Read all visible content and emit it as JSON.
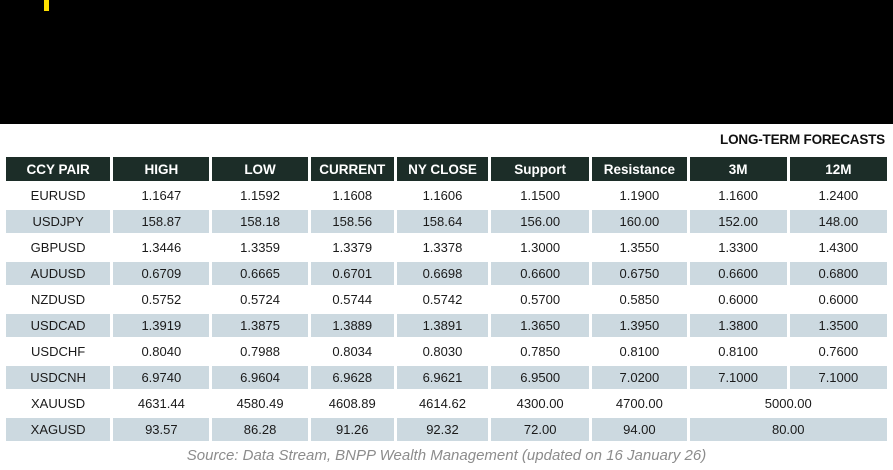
{
  "banner": {
    "accent_color": "#FFE000"
  },
  "forecast_label": "LONG-TERM FORECASTS",
  "colors": {
    "header_bg": "#1C2D28",
    "header_text": "#FFFFFF",
    "row_alt_bg": "#CCD9E0",
    "body_text": "#1A1A1A",
    "banner_bg": "#000000",
    "accent_yellow": "#FFE000",
    "footer_text": "#8C8C8C"
  },
  "table": {
    "columns": [
      "CCY PAIR",
      "HIGH",
      "LOW",
      "CURRENT",
      "NY CLOSE",
      "Support",
      "Resistance",
      "3M",
      "12M"
    ],
    "rows": [
      {
        "values": [
          "EURUSD",
          "1.1647",
          "1.1592",
          "1.1608",
          "1.1606",
          "1.1500",
          "1.1900",
          "1.1600",
          "1.2400"
        ]
      },
      {
        "values": [
          "USDJPY",
          "158.87",
          "158.18",
          "158.56",
          "158.64",
          "156.00",
          "160.00",
          "152.00",
          "148.00"
        ]
      },
      {
        "values": [
          "GBPUSD",
          "1.3446",
          "1.3359",
          "1.3379",
          "1.3378",
          "1.3000",
          "1.3550",
          "1.3300",
          "1.4300"
        ]
      },
      {
        "values": [
          "AUDUSD",
          "0.6709",
          "0.6665",
          "0.6701",
          "0.6698",
          "0.6600",
          "0.6750",
          "0.6600",
          "0.6800"
        ]
      },
      {
        "values": [
          "NZDUSD",
          "0.5752",
          "0.5724",
          "0.5744",
          "0.5742",
          "0.5700",
          "0.5850",
          "0.6000",
          "0.6000"
        ]
      },
      {
        "values": [
          "USDCAD",
          "1.3919",
          "1.3875",
          "1.3889",
          "1.3891",
          "1.3650",
          "1.3950",
          "1.3800",
          "1.3500"
        ]
      },
      {
        "values": [
          "USDCHF",
          "0.8040",
          "0.7988",
          "0.8034",
          "0.8030",
          "0.7850",
          "0.8100",
          "0.8100",
          "0.7600"
        ]
      },
      {
        "values": [
          "USDCNH",
          "6.9740",
          "6.9604",
          "6.9628",
          "6.9621",
          "6.9500",
          "7.0200",
          "7.1000",
          "7.1000"
        ]
      },
      {
        "values": [
          "XAUUSD",
          "4631.44",
          "4580.49",
          "4608.89",
          "4614.62",
          "4300.00",
          "4700.00"
        ],
        "long_term_merged": "5000.00"
      },
      {
        "values": [
          "XAGUSD",
          "93.57",
          "86.28",
          "91.26",
          "92.32",
          "72.00",
          "94.00"
        ],
        "long_term_merged": "80.00"
      }
    ]
  },
  "footer": {
    "source_text": "Source: Data Stream, BNPP Wealth Management (updated on 16 January 26)"
  }
}
